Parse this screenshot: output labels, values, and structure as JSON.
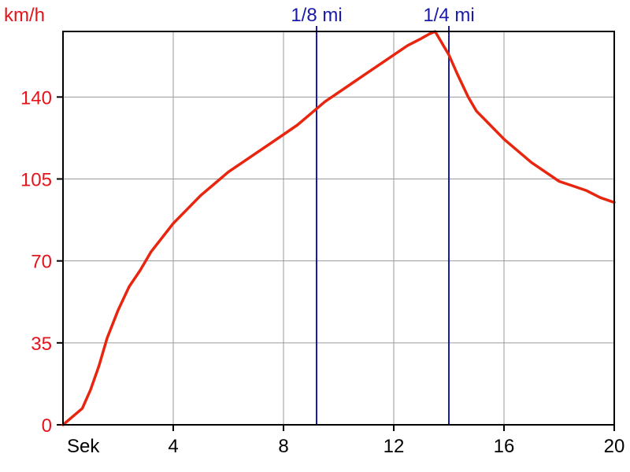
{
  "chart_data": {
    "type": "line",
    "ylabel": "km/h",
    "xlabel": "Sek",
    "xlim": [
      0,
      20
    ],
    "ylim": [
      0,
      168
    ],
    "x_ticks": [
      4,
      8,
      12,
      16,
      20
    ],
    "y_ticks": [
      0,
      35,
      70,
      105,
      140
    ],
    "grid": true,
    "markers": [
      {
        "label": "1/8 mi",
        "x": 9.2
      },
      {
        "label": "1/4 mi",
        "x": 14.0
      }
    ],
    "series": [
      {
        "color": "#e8260f",
        "x": [
          0.0,
          0.3,
          0.7,
          1.0,
          1.3,
          1.6,
          2.0,
          2.4,
          2.8,
          3.2,
          3.6,
          4.0,
          4.5,
          5.0,
          5.5,
          6.0,
          6.5,
          7.0,
          7.5,
          8.0,
          8.5,
          9.0,
          9.5,
          10.0,
          10.5,
          11.0,
          11.5,
          12.0,
          12.5,
          13.0,
          13.3,
          13.5,
          13.7,
          14.0,
          14.3,
          14.7,
          15.0,
          15.5,
          16.0,
          16.5,
          17.0,
          17.5,
          18.0,
          18.5,
          19.0,
          19.5,
          20.0
        ],
        "values": [
          0,
          3,
          7,
          15,
          25,
          37,
          49,
          59,
          66,
          74,
          80,
          86,
          92,
          98,
          103,
          108,
          112,
          116,
          120,
          124,
          128,
          133,
          138,
          142,
          146,
          150,
          154,
          158,
          162,
          165,
          167,
          168,
          164,
          158,
          150,
          140,
          134,
          128,
          122,
          117,
          112,
          108,
          104,
          102,
          100,
          97,
          95
        ]
      }
    ]
  },
  "colors": {
    "axis": "#000000",
    "grid": "#9a9a9a",
    "marker_line": "#1a1aa8",
    "y_text": "#e4141b",
    "x_text": "#000000"
  }
}
